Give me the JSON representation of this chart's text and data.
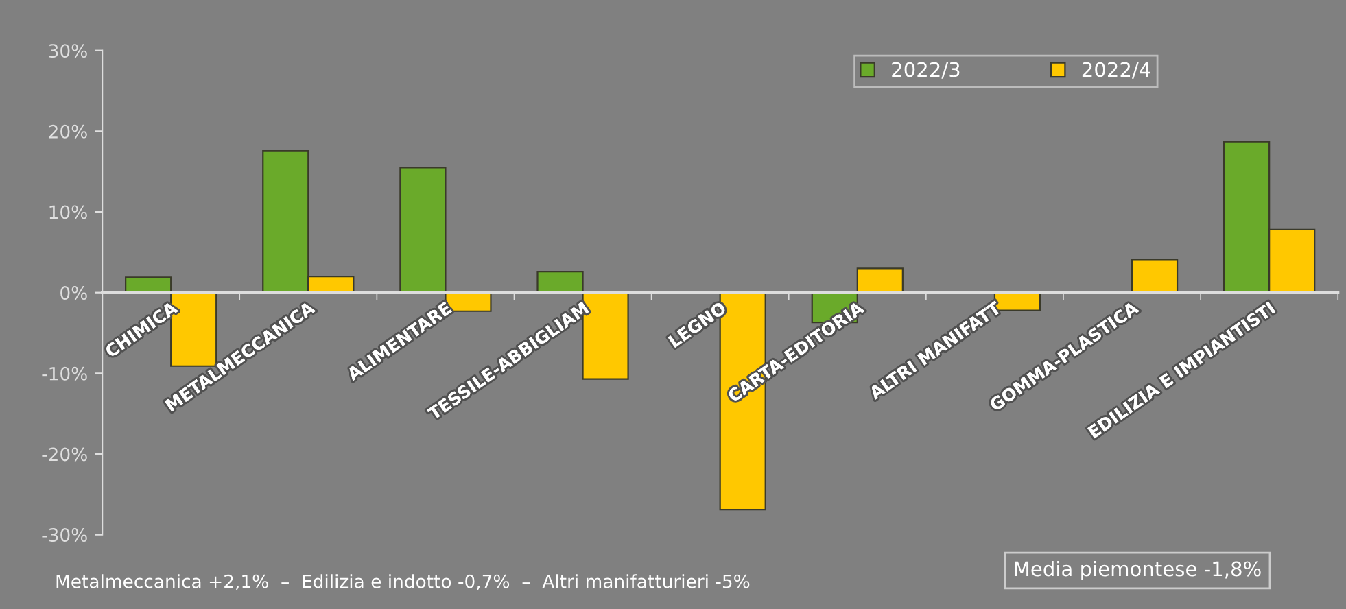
{
  "chart_data": {
    "type": "bar",
    "categories": [
      "CHIMICA",
      "METALMECCANICA",
      "ALIMENTARE",
      "TESSILE-ABBIGLIAM",
      "LEGNO",
      "CARTA-EDITORIA",
      "ALTRI MANIFATT",
      "GOMMA-PLASTICA",
      "EDILIZIA E IMPIANTISTI"
    ],
    "series": [
      {
        "name": "2022/3",
        "color": "#6aaa2a",
        "values": [
          1.9,
          17.6,
          15.5,
          2.6,
          null,
          -3.7,
          null,
          null,
          18.7
        ]
      },
      {
        "name": "2022/4",
        "color": "#ffc800",
        "values": [
          -9.1,
          2.0,
          -2.3,
          -10.7,
          -26.9,
          3.0,
          -2.2,
          4.1,
          7.8
        ]
      }
    ],
    "ylim": [
      -30,
      30
    ],
    "yticks": [
      {
        "value": -30,
        "label": "-30%"
      },
      {
        "value": -20,
        "label": "-20%"
      },
      {
        "value": -10,
        "label": "-10%"
      },
      {
        "value": 0,
        "label": "0%"
      },
      {
        "value": 10,
        "label": "10%"
      },
      {
        "value": 20,
        "label": "20%"
      },
      {
        "value": 30,
        "label": "30%"
      }
    ],
    "grid": false,
    "legend": "top right",
    "annotations": [
      "Metalmeccanica +2,1%  –  Edilizia e indotto -0,7%  –  Altri manifatturieri -5%",
      "Media piemontese -1,8%"
    ]
  }
}
